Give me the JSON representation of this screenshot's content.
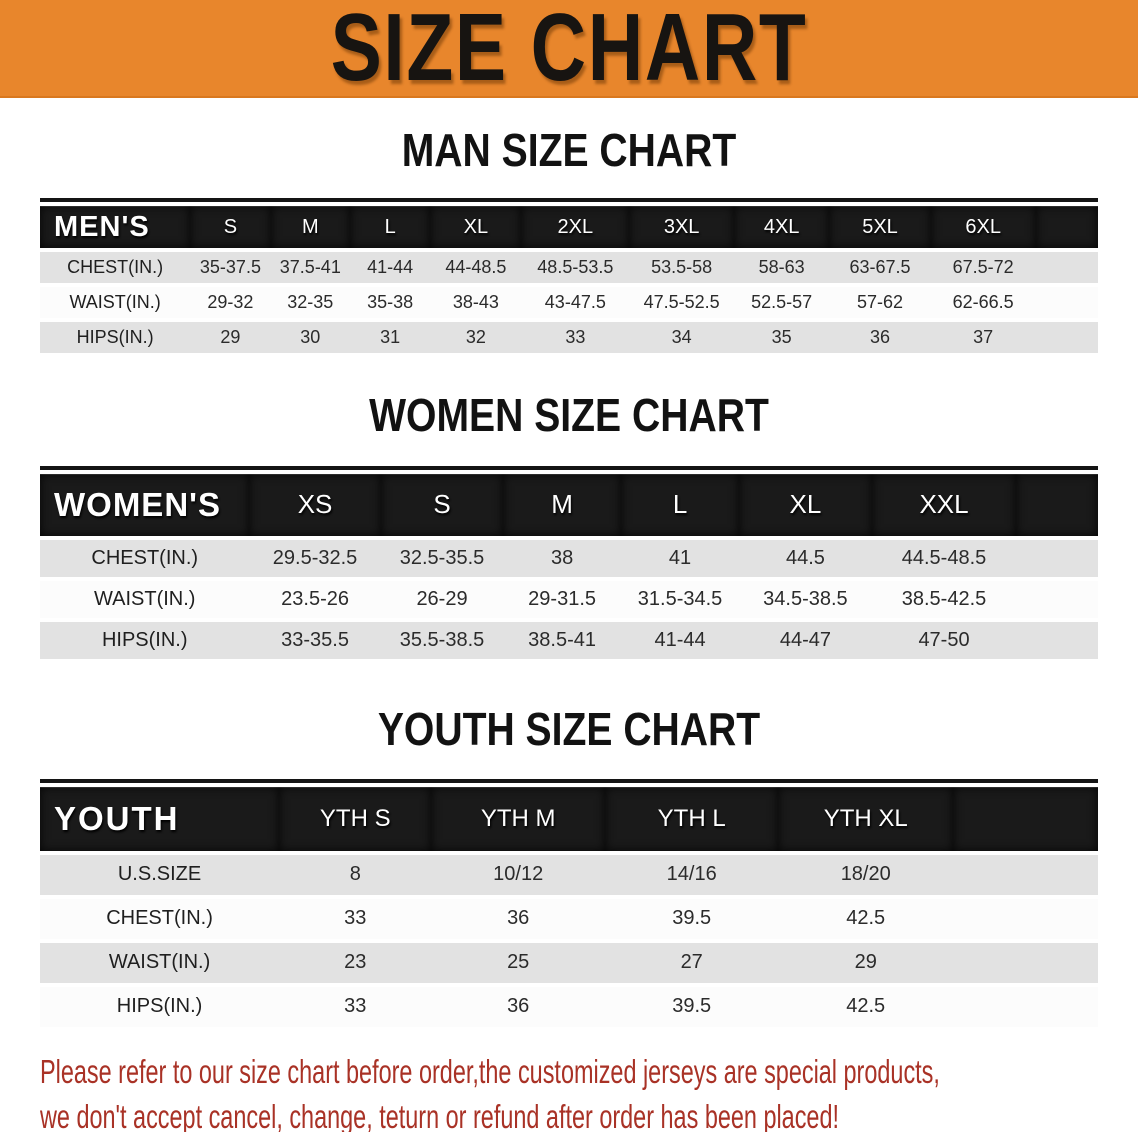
{
  "banner": {
    "title": "SIZE CHART",
    "bg_color": "#E8862C"
  },
  "sections": [
    {
      "heading": "MAN SIZE CHART",
      "group_label": "MEN'S",
      "columns": [
        "S",
        "M",
        "L",
        "XL",
        "2XL",
        "3XL",
        "4XL",
        "5XL",
        "6XL"
      ],
      "rows": [
        {
          "label": "CHEST(IN.)",
          "values": [
            "35-37.5",
            "37.5-41",
            "41-44",
            "44-48.5",
            "48.5-53.5",
            "53.5-58",
            "58-63",
            "63-67.5",
            "67.5-72"
          ]
        },
        {
          "label": "WAIST(IN.)",
          "values": [
            "29-32",
            "32-35",
            "35-38",
            "38-43",
            "43-47.5",
            "47.5-52.5",
            "52.5-57",
            "57-62",
            "62-66.5"
          ]
        },
        {
          "label": "HIPS(IN.)",
          "values": [
            "29",
            "30",
            "31",
            "32",
            "33",
            "34",
            "35",
            "36",
            "37"
          ]
        }
      ]
    },
    {
      "heading": "WOMEN SIZE CHART",
      "group_label": "WOMEN'S",
      "columns": [
        "XS",
        "S",
        "M",
        "L",
        "XL",
        "XXL"
      ],
      "rows": [
        {
          "label": "CHEST(IN.)",
          "values": [
            "29.5-32.5",
            "32.5-35.5",
            "38",
            "41",
            "44.5",
            "44.5-48.5"
          ]
        },
        {
          "label": "WAIST(IN.)",
          "values": [
            "23.5-26",
            "26-29",
            "29-31.5",
            "31.5-34.5",
            "34.5-38.5",
            "38.5-42.5"
          ]
        },
        {
          "label": "HIPS(IN.)",
          "values": [
            "33-35.5",
            "35.5-38.5",
            "38.5-41",
            "41-44",
            "44-47",
            "47-50"
          ]
        }
      ]
    },
    {
      "heading": "YOUTH SIZE CHART",
      "group_label": "YOUTH",
      "columns": [
        "YTH S",
        "YTH M",
        "YTH L",
        "YTH XL"
      ],
      "rows": [
        {
          "label": "U.S.SIZE",
          "values": [
            "8",
            "10/12",
            "14/16",
            "18/20"
          ]
        },
        {
          "label": "CHEST(IN.)",
          "values": [
            "33",
            "36",
            "39.5",
            "42.5"
          ]
        },
        {
          "label": "WAIST(IN.)",
          "values": [
            "23",
            "25",
            "27",
            "29"
          ]
        },
        {
          "label": "HIPS(IN.)",
          "values": [
            "33",
            "36",
            "39.5",
            "42.5"
          ]
        }
      ]
    }
  ],
  "footer": {
    "line1": "Please refer to our size chart before order,the customized jerseys are special products,",
    "line2": "we don't accept cancel, change, teturn or refund after order has been placed!",
    "text_color": "#A93226"
  }
}
